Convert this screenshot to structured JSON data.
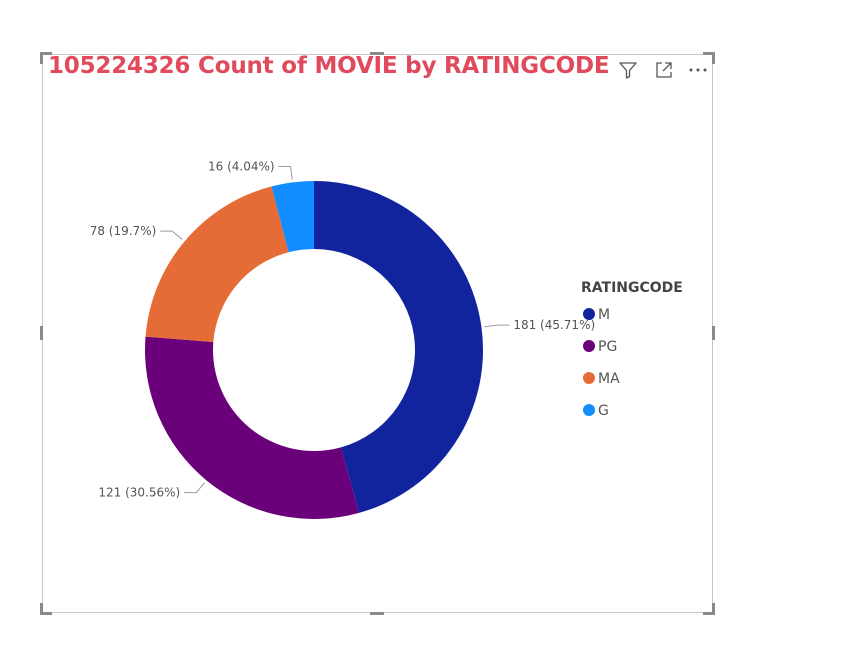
{
  "visual": {
    "title": "105224326 Count of MOVIE by RATINGCODE",
    "title_color": "#e04a5c",
    "header_icons": [
      "filter-icon",
      "focus-mode-icon",
      "more-options-icon"
    ]
  },
  "chart_data": {
    "type": "pie",
    "variant": "donut",
    "title": "105224326 Count of MOVIE by RATINGCODE",
    "legend_title": "RATINGCODE",
    "legend_position": "right",
    "categories": [
      "M",
      "PG",
      "MA",
      "G"
    ],
    "values": [
      181,
      121,
      78,
      16
    ],
    "percent_labels": [
      "45.71%",
      "30.56%",
      "19.7%",
      "4.04%"
    ],
    "data_labels": [
      "181 (45.71%)",
      "121 (30.56%)",
      "78 (19.7%)",
      "16 (4.04%)"
    ],
    "colors": [
      "#12239e",
      "#6b007b",
      "#e66c37",
      "#118dff"
    ]
  }
}
